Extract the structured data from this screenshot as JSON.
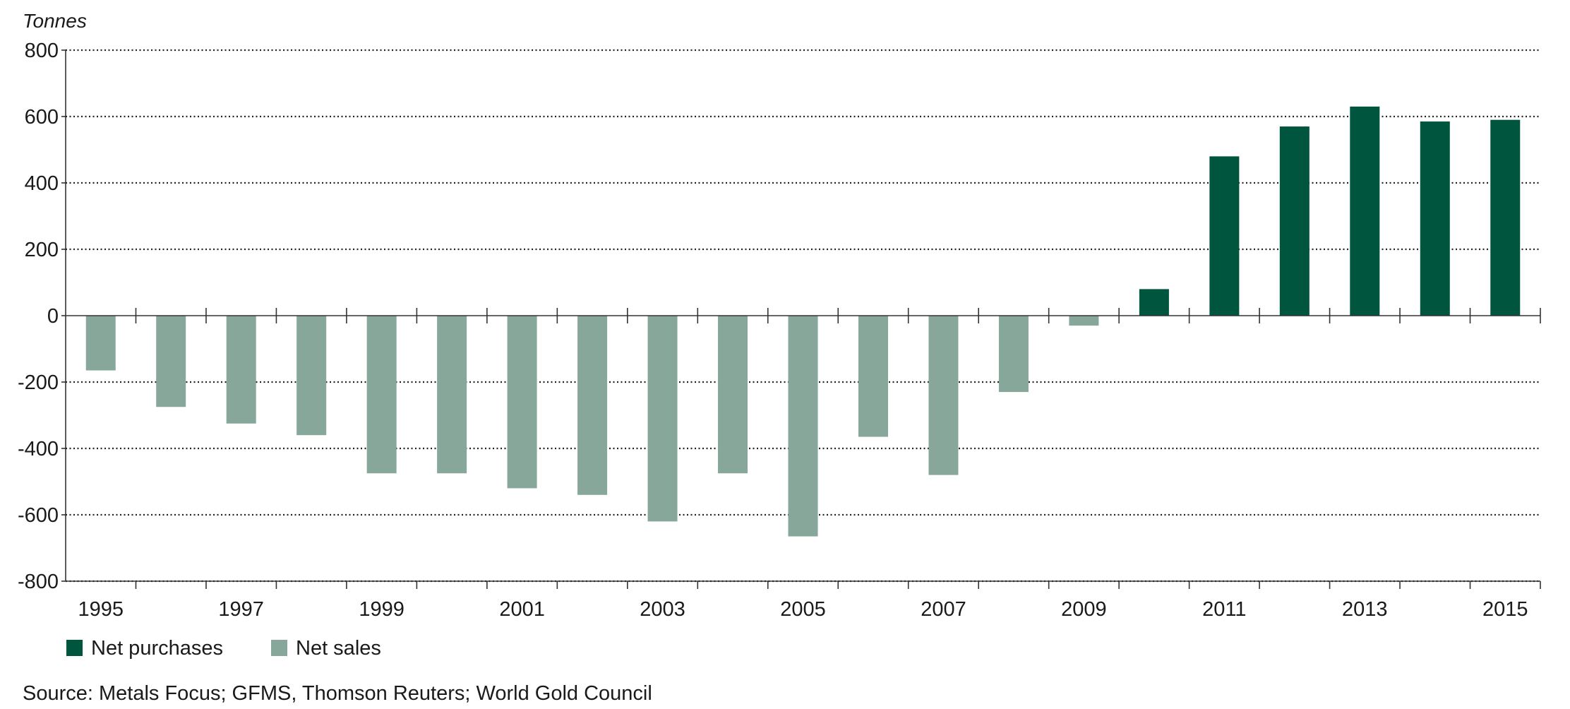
{
  "chart_data": {
    "type": "bar",
    "unit_label": "Tonnes",
    "categories": [
      "1995",
      "1996",
      "1997",
      "1998",
      "1999",
      "2000",
      "2001",
      "2002",
      "2003",
      "2004",
      "2005",
      "2006",
      "2007",
      "2008",
      "2009",
      "2010",
      "2011",
      "2012",
      "2013",
      "2014",
      "2015"
    ],
    "x_tick_labels": [
      "1995",
      "1997",
      "1999",
      "2001",
      "2003",
      "2005",
      "2007",
      "2009",
      "2011",
      "2013",
      "2015"
    ],
    "values": [
      -165,
      -275,
      -325,
      -360,
      -475,
      -475,
      -520,
      -540,
      -620,
      -475,
      -665,
      -365,
      -480,
      -230,
      -30,
      80,
      480,
      570,
      630,
      585,
      590
    ],
    "series": [
      {
        "name": "Net purchases",
        "color": "#00553f"
      },
      {
        "name": "Net sales",
        "color": "#86a79a"
      }
    ],
    "ylim": [
      -800,
      800
    ],
    "y_ticks": [
      800,
      600,
      400,
      200,
      0,
      -200,
      -400,
      -600,
      -800
    ],
    "grid": true,
    "grid_style": "dotted",
    "legend_placement": "bottom-left",
    "source": "Source: Metals Focus; GFMS, Thomson Reuters; World Gold Council"
  }
}
